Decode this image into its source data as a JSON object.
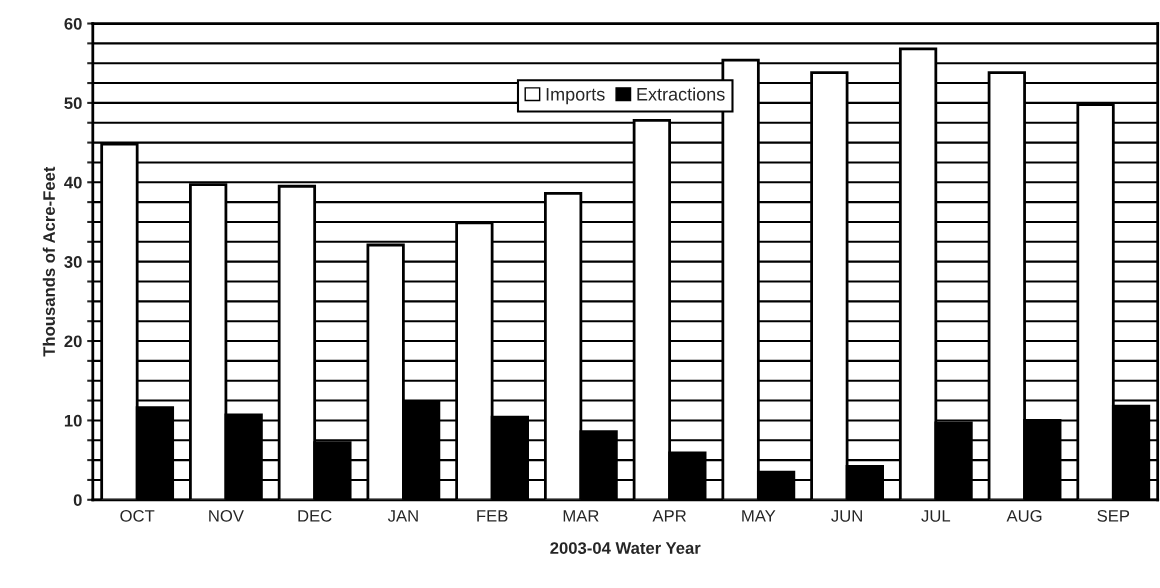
{
  "chart_data": {
    "type": "bar",
    "xlabel": "2003-04 Water Year",
    "ylabel": "Thousands of Acre-Feet",
    "categories": [
      "OCT",
      "NOV",
      "DEC",
      "JAN",
      "FEB",
      "MAR",
      "APR",
      "MAY",
      "JUN",
      "JUL",
      "AUG",
      "SEP"
    ],
    "series": [
      {
        "name": "Imports",
        "color": "#ffffff",
        "values": [
          44.8,
          39.7,
          39.5,
          32.1,
          34.9,
          38.6,
          47.8,
          55.4,
          53.8,
          56.8,
          53.8,
          49.8
        ]
      },
      {
        "name": "Extractions",
        "color": "#000000",
        "values": [
          11.6,
          10.7,
          7.2,
          12.3,
          10.4,
          8.6,
          5.9,
          3.5,
          4.2,
          9.7,
          10.0,
          11.8
        ]
      }
    ],
    "ylim": [
      0,
      60
    ],
    "yticks": [
      0,
      {
        "value": 2.5,
        "label": null
      },
      {
        "value": 5,
        "label": null
      },
      {
        "value": 7.5,
        "label": null
      },
      10,
      {
        "value": 12.5,
        "label": null
      },
      {
        "value": 15,
        "label": null
      },
      {
        "value": 17.5,
        "label": null
      },
      20,
      {
        "value": 22.5,
        "label": null
      },
      {
        "value": 25,
        "label": null
      },
      {
        "value": 27.5,
        "label": null
      },
      30,
      {
        "value": 32.5,
        "label": null
      },
      {
        "value": 35,
        "label": null
      },
      {
        "value": 37.5,
        "label": null
      },
      40,
      {
        "value": 42.5,
        "label": null
      },
      {
        "value": 45,
        "label": null
      },
      {
        "value": 47.5,
        "label": null
      },
      50,
      {
        "value": 52.5,
        "label": null
      },
      {
        "value": 55,
        "label": null
      },
      {
        "value": 57.5,
        "label": null
      },
      60
    ],
    "grid": "y",
    "legend": "top"
  }
}
